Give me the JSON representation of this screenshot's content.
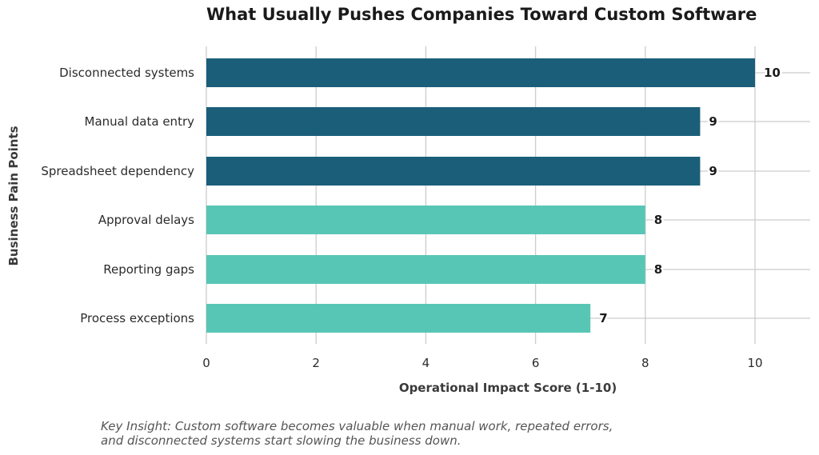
{
  "chart_data": {
    "type": "bar",
    "orientation": "horizontal",
    "title": "What Usually Pushes Companies Toward Custom Software",
    "xlabel": "Operational Impact Score (1-10)",
    "ylabel": "Business Pain Points",
    "xlim": [
      0,
      11
    ],
    "xticks": [
      0,
      2,
      4,
      6,
      8,
      10
    ],
    "grid": true,
    "categories": [
      "Disconnected systems",
      "Manual data entry",
      "Spreadsheet dependency",
      "Approval delays",
      "Reporting gaps",
      "Process exceptions"
    ],
    "values": [
      10,
      9,
      9,
      8,
      8,
      7
    ],
    "colors": [
      "#1b5e7a",
      "#1b5e7a",
      "#1b5e7a",
      "#58c6b5",
      "#58c6b5",
      "#58c6b5"
    ]
  },
  "note": {
    "line1": "Key Insight: Custom software becomes valuable when manual work, repeated errors,",
    "line2": "and disconnected systems start slowing the business down."
  }
}
